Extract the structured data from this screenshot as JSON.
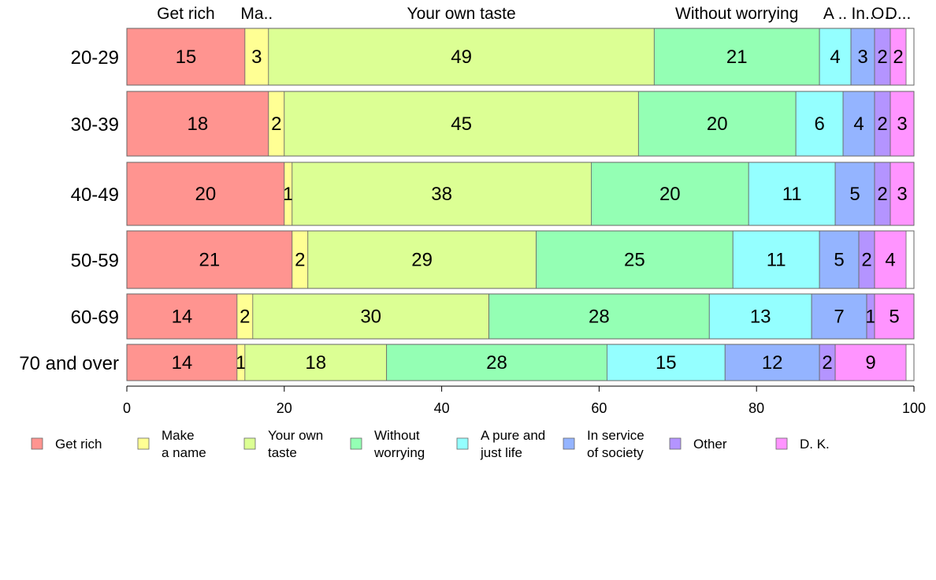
{
  "chart_data": {
    "type": "bar",
    "orientation": "horizontal",
    "stacked": true,
    "categories": [
      "20-29",
      "30-39",
      "40-49",
      "50-59",
      "60-69",
      "70 and over"
    ],
    "series": [
      {
        "name": "Get rich",
        "values": [
          15,
          18,
          20,
          21,
          14,
          14
        ],
        "color": "#ff9490"
      },
      {
        "name": "Make a name",
        "values": [
          3,
          2,
          1,
          2,
          2,
          1
        ],
        "color": "#ffff94"
      },
      {
        "name": "Your own taste",
        "values": [
          49,
          45,
          38,
          29,
          30,
          18
        ],
        "color": "#dcff94"
      },
      {
        "name": "Without worrying",
        "values": [
          21,
          20,
          20,
          25,
          28,
          28
        ],
        "color": "#94ffb4"
      },
      {
        "name": "A pure and just life",
        "values": [
          4,
          6,
          11,
          11,
          13,
          15
        ],
        "color": "#94ffff"
      },
      {
        "name": "In service of society",
        "values": [
          3,
          4,
          5,
          5,
          7,
          12
        ],
        "color": "#94b4ff"
      },
      {
        "name": "Other",
        "values": [
          2,
          2,
          2,
          2,
          1,
          2
        ],
        "color": "#b494ff"
      },
      {
        "name": "D. K.",
        "values": [
          2,
          3,
          3,
          4,
          5,
          9
        ],
        "color": "#ff94ff"
      }
    ],
    "legend_lines": [
      [
        "Get rich"
      ],
      [
        "Make",
        "a name"
      ],
      [
        "Your own",
        "taste"
      ],
      [
        "Without",
        "worrying"
      ],
      [
        "A pure and",
        "just life"
      ],
      [
        "In service",
        "of society"
      ],
      [
        "Other"
      ],
      [
        "D. K."
      ]
    ],
    "top_labels": [
      "Get rich",
      "Ma..",
      "Your own taste",
      "Without worrying",
      "A ..",
      "In..",
      "O..",
      "D..."
    ],
    "xlim": [
      0,
      100
    ],
    "xticks": [
      0,
      20,
      40,
      60,
      80,
      100
    ],
    "legend_position": "bottom",
    "grid": false
  }
}
